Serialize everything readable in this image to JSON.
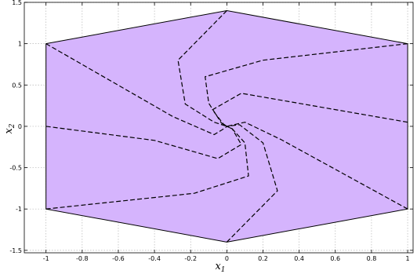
{
  "chart_data": {
    "type": "line",
    "title": "",
    "xlabel": {
      "base": "x",
      "sub": "1"
    },
    "ylabel": {
      "base": "x",
      "sub": "2"
    },
    "xlim": [
      -1.12,
      1.03
    ],
    "ylim": [
      -1.53,
      1.5
    ],
    "grid": true,
    "xticks": [
      -1,
      -0.8,
      -0.6,
      -0.4,
      -0.2,
      0,
      0.2,
      0.4,
      0.6,
      0.8,
      1
    ],
    "yticks": [
      -1.5,
      -1,
      -0.5,
      0,
      0.5,
      1,
      1.5
    ],
    "xtick_labels": [
      "-1",
      "-0.8",
      "-0.6",
      "-0.4",
      "-0.2",
      "0",
      "0.2",
      "0.4",
      "0.6",
      "0.8",
      "1"
    ],
    "ytick_labels": [
      "-1.5",
      "-1",
      "-0.5",
      "0",
      "0.5",
      "1",
      "1.5"
    ],
    "region": {
      "fill": "#d5b4fd",
      "edge": "#000000",
      "vertices": [
        [
          -1,
          1
        ],
        [
          0,
          1.4
        ],
        [
          1,
          1
        ],
        [
          1,
          -1
        ],
        [
          0,
          -1.4
        ],
        [
          -1,
          -1
        ]
      ]
    },
    "trajectories": [
      [
        [
          0,
          1.4
        ],
        [
          -0.27,
          0.8
        ],
        [
          -0.23,
          0.27
        ],
        [
          -0.07,
          0.05
        ],
        [
          0,
          0
        ]
      ],
      [
        [
          1,
          1
        ],
        [
          0.2,
          0.8
        ],
        [
          -0.12,
          0.6
        ],
        [
          -0.1,
          0.28
        ],
        [
          -0.03,
          0.04
        ],
        [
          0,
          0
        ]
      ],
      [
        [
          1,
          0.05
        ],
        [
          0.08,
          0.4
        ],
        [
          -0.08,
          0.2
        ],
        [
          -0.02,
          0.03
        ],
        [
          0,
          0
        ]
      ],
      [
        [
          1,
          -1
        ],
        [
          0.3,
          -0.16
        ],
        [
          0.1,
          0.05
        ],
        [
          0.02,
          0.01
        ],
        [
          0,
          0
        ]
      ],
      [
        [
          0,
          -1.4
        ],
        [
          0.28,
          -0.78
        ],
        [
          0.2,
          -0.2
        ],
        [
          0.07,
          0.02
        ],
        [
          0,
          0
        ]
      ],
      [
        [
          -1,
          -1
        ],
        [
          -0.18,
          -0.81
        ],
        [
          0.12,
          -0.6
        ],
        [
          0.1,
          -0.2
        ],
        [
          0.03,
          -0.03
        ],
        [
          0,
          0
        ]
      ],
      [
        [
          -1,
          0
        ],
        [
          -0.4,
          -0.17
        ],
        [
          -0.05,
          -0.39
        ],
        [
          0.08,
          -0.22
        ],
        [
          0.03,
          -0.03
        ],
        [
          0,
          0
        ]
      ],
      [
        [
          -1,
          1
        ],
        [
          -0.3,
          0.12
        ],
        [
          -0.07,
          -0.1
        ],
        [
          -0.01,
          -0.02
        ],
        [
          0,
          0
        ]
      ]
    ],
    "colors": {
      "region_fill": "#d5b4fd",
      "region_edge": "#000000",
      "trajectory": "#000000",
      "grid": "#b5b5b5",
      "axes": "#000000"
    }
  }
}
